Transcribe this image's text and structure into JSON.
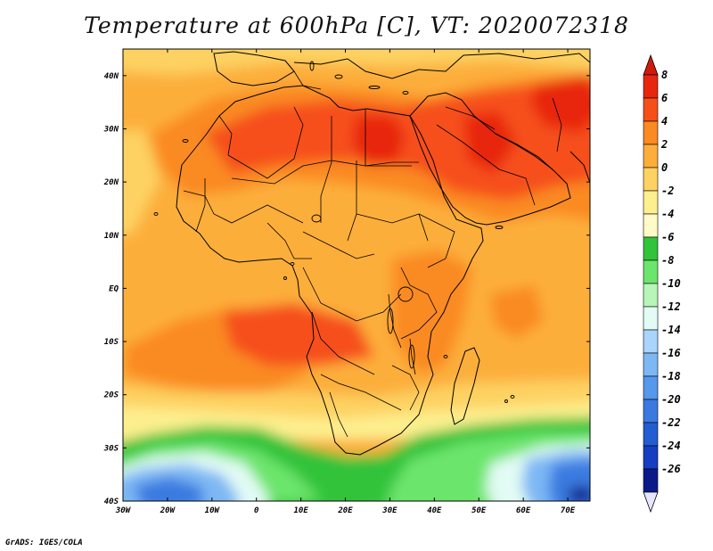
{
  "title": "Temperature at 600hPa [C], VT: 2020072318",
  "footer": "GrADS: IGES/COLA",
  "map": {
    "lon_range": [
      -30,
      75
    ],
    "lat_range": [
      -40,
      45
    ],
    "lon_ticks": [
      {
        "value": -30,
        "label": "30W"
      },
      {
        "value": -20,
        "label": "20W"
      },
      {
        "value": -10,
        "label": "10W"
      },
      {
        "value": 0,
        "label": "0"
      },
      {
        "value": 10,
        "label": "10E"
      },
      {
        "value": 20,
        "label": "20E"
      },
      {
        "value": 30,
        "label": "30E"
      },
      {
        "value": 40,
        "label": "40E"
      },
      {
        "value": 50,
        "label": "50E"
      },
      {
        "value": 60,
        "label": "60E"
      },
      {
        "value": 70,
        "label": "70E"
      }
    ],
    "lat_ticks": [
      {
        "value": 40,
        "label": "40N"
      },
      {
        "value": 30,
        "label": "30N"
      },
      {
        "value": 20,
        "label": "20N"
      },
      {
        "value": 10,
        "label": "10N"
      },
      {
        "value": 0,
        "label": "EQ"
      },
      {
        "value": -10,
        "label": "10S"
      },
      {
        "value": -20,
        "label": "20S"
      },
      {
        "value": -30,
        "label": "30S"
      },
      {
        "value": -40,
        "label": "40S"
      }
    ]
  },
  "colorbar": {
    "levels": [
      {
        "label": "8",
        "color": "#e8260f"
      },
      {
        "label": "6",
        "color": "#f6501a"
      },
      {
        "label": "4",
        "color": "#fa8a21"
      },
      {
        "label": "2",
        "color": "#fcae3b"
      },
      {
        "label": "0",
        "color": "#fdd262"
      },
      {
        "label": "-2",
        "color": "#fdef8e"
      },
      {
        "label": "-4",
        "color": "#fffac8"
      },
      {
        "label": "-6",
        "color": "#31c33a"
      },
      {
        "label": "-8",
        "color": "#6ce56c"
      },
      {
        "label": "-10",
        "color": "#b8f5b8"
      },
      {
        "label": "-12",
        "color": "#e2fbf4"
      },
      {
        "label": "-14",
        "color": "#aad4fa"
      },
      {
        "label": "-16",
        "color": "#7db8f4"
      },
      {
        "label": "-18",
        "color": "#5598ec"
      },
      {
        "label": "-20",
        "color": "#3a7ae0"
      },
      {
        "label": "-22",
        "color": "#245cd2"
      },
      {
        "label": "-24",
        "color": "#163ec2"
      },
      {
        "label": "-26",
        "color": "#0b1a88"
      }
    ],
    "top_color": "#d01a0b",
    "bottom_color": "#e6e6ff"
  }
}
